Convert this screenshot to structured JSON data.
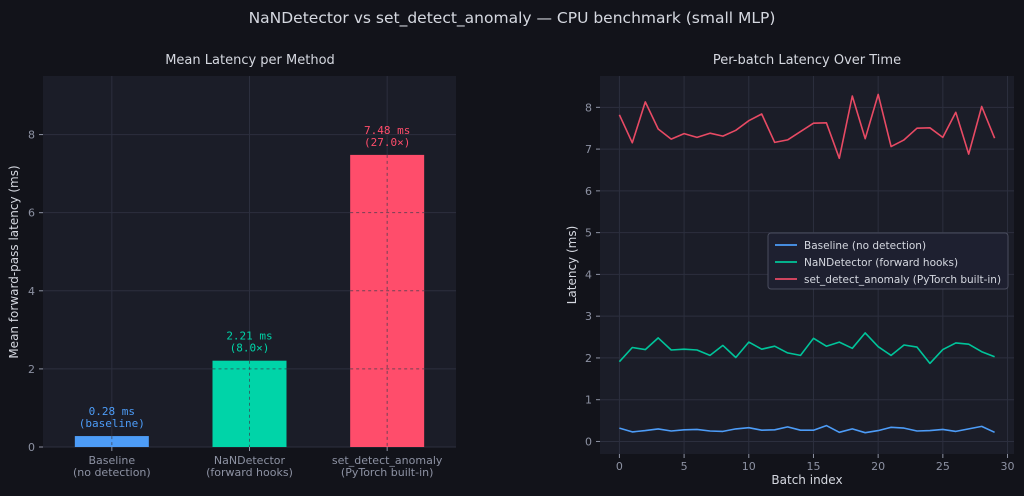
{
  "suptitle": "NaNDetector vs set_detect_anomaly — CPU benchmark (small MLP)",
  "chart_data": [
    {
      "type": "bar",
      "title": "Mean Latency per Method",
      "xlabel": "",
      "ylabel": "Mean forward-pass latency (ms)",
      "ylim": [
        0,
        9.5
      ],
      "yticks": [
        0,
        2,
        4,
        6,
        8
      ],
      "grid": true,
      "bars": [
        {
          "name": "bar-baseline",
          "label_lines": [
            "Baseline",
            "(no detection)"
          ],
          "value": 0.28,
          "annotation": [
            "0.28 ms",
            "(baseline)"
          ],
          "color": "#4d9cf7"
        },
        {
          "name": "bar-nandetector",
          "label_lines": [
            "NaNDetector",
            "(forward hooks)"
          ],
          "value": 2.21,
          "annotation": [
            "2.21 ms",
            "(8.0×)"
          ],
          "color": "#00d4a8"
        },
        {
          "name": "bar-set-detect-anomaly",
          "label_lines": [
            "set_detect_anomaly",
            "(PyTorch built-in)"
          ],
          "value": 7.48,
          "annotation": [
            "7.48 ms",
            "(27.0×)"
          ],
          "color": "#ff4d6b"
        }
      ]
    },
    {
      "type": "line",
      "title": "Per-batch Latency Over Time",
      "xlabel": "Batch index",
      "ylabel": "Latency (ms)",
      "xlim": [
        -1.5,
        30.5
      ],
      "ylim": [
        -0.3,
        8.75
      ],
      "xticks": [
        0,
        5,
        10,
        15,
        20,
        25,
        30
      ],
      "yticks": [
        0,
        1,
        2,
        3,
        4,
        5,
        6,
        7,
        8
      ],
      "grid": true,
      "legend_position": "center-right",
      "x": [
        0,
        1,
        2,
        3,
        4,
        5,
        6,
        7,
        8,
        9,
        10,
        11,
        12,
        13,
        14,
        15,
        16,
        17,
        18,
        19,
        20,
        21,
        22,
        23,
        24,
        25,
        26,
        27,
        28,
        29
      ],
      "series": [
        {
          "name": "Baseline (no detection)",
          "key": "baseline",
          "color": "#4d9cf7",
          "values": [
            0.32,
            0.23,
            0.26,
            0.3,
            0.25,
            0.28,
            0.29,
            0.25,
            0.24,
            0.3,
            0.33,
            0.27,
            0.28,
            0.35,
            0.27,
            0.27,
            0.38,
            0.22,
            0.3,
            0.21,
            0.26,
            0.34,
            0.32,
            0.25,
            0.26,
            0.29,
            0.24,
            0.3,
            0.36,
            0.22
          ]
        },
        {
          "name": "NaNDetector (forward hooks)",
          "key": "nandetector",
          "color": "#00c49a",
          "values": [
            1.91,
            2.25,
            2.2,
            2.48,
            2.19,
            2.21,
            2.19,
            2.06,
            2.3,
            2.01,
            2.38,
            2.21,
            2.28,
            2.12,
            2.06,
            2.47,
            2.28,
            2.38,
            2.23,
            2.6,
            2.27,
            2.06,
            2.31,
            2.26,
            1.87,
            2.2,
            2.36,
            2.33,
            2.15,
            2.03
          ]
        },
        {
          "name": "set_detect_anomaly (PyTorch built-in)",
          "key": "anomaly",
          "color": "#e84a64",
          "values": [
            7.82,
            7.15,
            8.13,
            7.48,
            7.24,
            7.37,
            7.28,
            7.38,
            7.31,
            7.45,
            7.68,
            7.84,
            7.16,
            7.22,
            7.42,
            7.62,
            7.63,
            6.78,
            8.27,
            7.25,
            8.31,
            7.06,
            7.22,
            7.5,
            7.51,
            7.28,
            7.88,
            6.88,
            8.02,
            7.26
          ]
        }
      ]
    }
  ]
}
